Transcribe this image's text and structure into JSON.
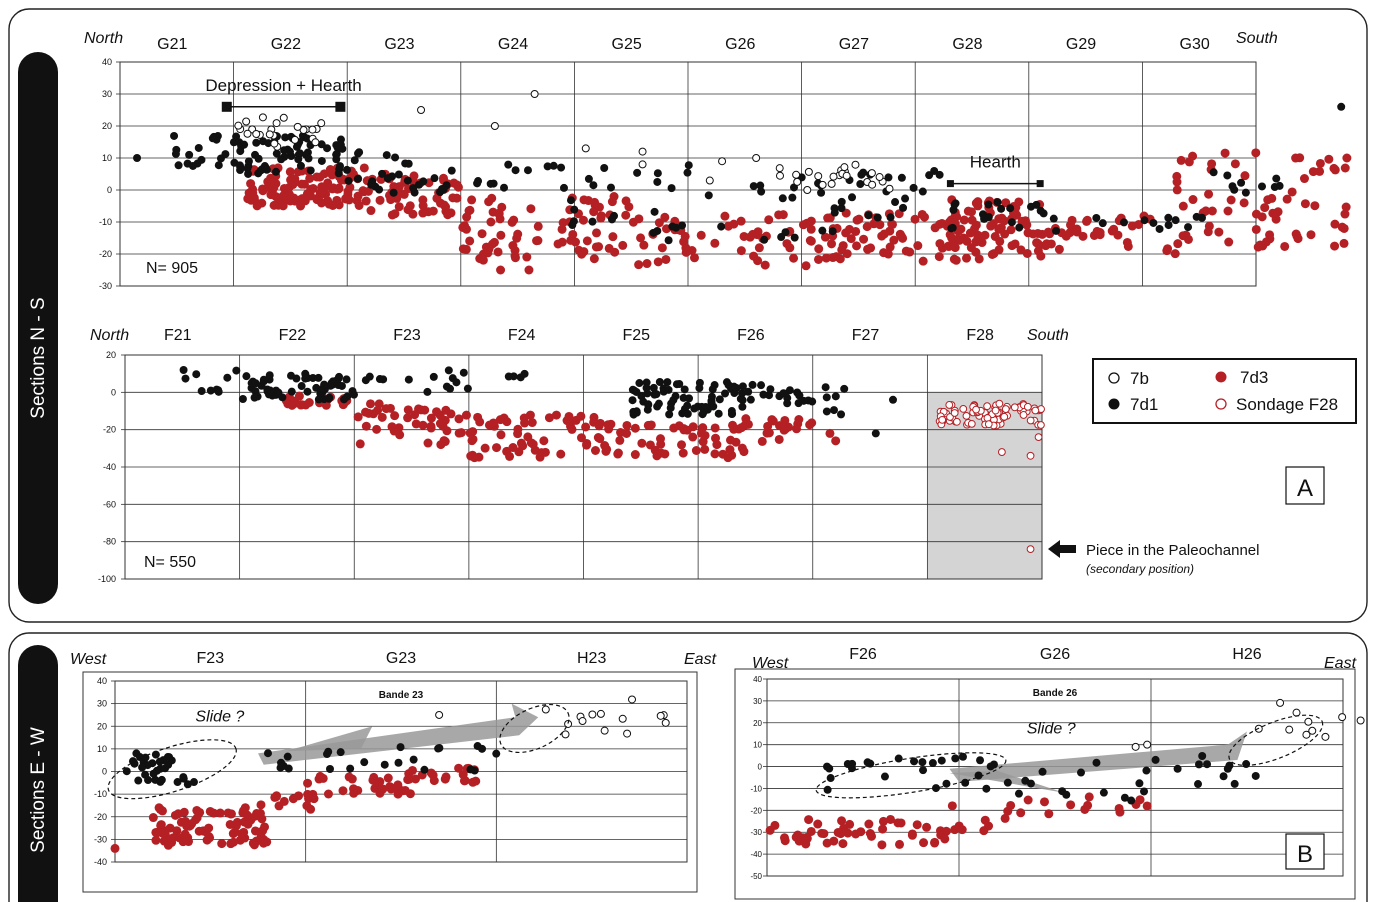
{
  "side_labels": {
    "ns": "Sections N - S",
    "ew": "Sections E - W"
  },
  "panel_labels": {
    "a": "A",
    "b": "B"
  },
  "legend": {
    "items": [
      {
        "label": "7b",
        "style": "open-black"
      },
      {
        "label": "7d1",
        "style": "filled-black"
      },
      {
        "label": "7d3",
        "style": "filled-red"
      },
      {
        "label": "Sondage F28",
        "style": "open-red"
      }
    ],
    "colors": {
      "black": "#111111",
      "red": "#b52025",
      "grey": "#999999"
    }
  },
  "annotations": {
    "paleochannel": "Piece in the Paleochannel",
    "paleochannel_sub": "(secondary position)"
  },
  "chart_data": [
    {
      "id": "g",
      "type": "scatter",
      "dir_left": "North",
      "dir_right": "South",
      "categories": [
        "G21",
        "G22",
        "G23",
        "G24",
        "G25",
        "G26",
        "G27",
        "G28",
        "G29",
        "G30"
      ],
      "ylim": [
        -30,
        40
      ],
      "yticks": [
        -30,
        -20,
        -10,
        0,
        10,
        20,
        30,
        40
      ],
      "n_label": "N= 905",
      "brackets": [
        {
          "label": "Depression + Hearth",
          "x0": 0.94,
          "x1": 1.94,
          "y": 26
        },
        {
          "label": "Hearth",
          "x0": 7.31,
          "x1": 8.1,
          "y": 2
        }
      ],
      "clusters": {
        "b": [
          [
            1.0,
            1.8,
            13,
            23,
            24
          ],
          [
            4.9,
            6.7,
            -1,
            7,
            5
          ],
          [
            5.8,
            6.8,
            0,
            8,
            18
          ]
        ],
        "d1": [
          [
            0.45,
            1.1,
            7,
            17,
            22
          ],
          [
            1.0,
            1.95,
            5,
            17,
            60
          ],
          [
            1.9,
            2.6,
            -2,
            13,
            28
          ],
          [
            2.6,
            3.6,
            -2,
            10,
            16
          ],
          [
            3.6,
            6.4,
            -16,
            8,
            50
          ],
          [
            6.4,
            7.3,
            -9,
            6,
            20
          ],
          [
            7.3,
            8.2,
            -12,
            -3,
            18
          ],
          [
            8.2,
            9.6,
            -13,
            -8,
            14
          ],
          [
            9.6,
            10.3,
            -1,
            6,
            10
          ]
        ],
        "d3": [
          [
            1.1,
            2.2,
            -5,
            7,
            110
          ],
          [
            2.1,
            3.0,
            -8,
            5,
            55
          ],
          [
            3.0,
            4.5,
            -22,
            -2,
            80
          ],
          [
            4.5,
            6.2,
            -24,
            -7,
            60
          ],
          [
            6.2,
            7.4,
            -23,
            -7,
            70
          ],
          [
            7.3,
            8.2,
            -22,
            -3,
            85
          ],
          [
            8.2,
            9.3,
            -20,
            -8,
            30
          ],
          [
            9.3,
            10.8,
            -18,
            12,
            70
          ]
        ]
      },
      "points": {
        "b": [
          [
            2.65,
            25
          ],
          [
            3.3,
            20
          ],
          [
            3.65,
            30
          ],
          [
            4.1,
            13
          ],
          [
            4.6,
            12
          ],
          [
            4.6,
            8
          ],
          [
            5.3,
            9
          ],
          [
            5.6,
            10
          ],
          [
            6.05,
            0
          ]
        ],
        "d1": [
          [
            10.75,
            26
          ],
          [
            0.15,
            10
          ]
        ],
        "d3": [
          [
            10.8,
            10
          ],
          [
            3.2,
            -20
          ],
          [
            3.35,
            -25
          ],
          [
            3.6,
            -25
          ]
        ]
      }
    },
    {
      "id": "f",
      "type": "scatter",
      "dir_left": "North",
      "dir_right": "South",
      "categories": [
        "F21",
        "F22",
        "F23",
        "F24",
        "F25",
        "F26",
        "F27",
        "F28"
      ],
      "ylim": [
        -100,
        20
      ],
      "yticks": [
        -100,
        -80,
        -60,
        -40,
        -20,
        0,
        20
      ],
      "n_label": "N= 550",
      "shaded_range": [
        7,
        8
      ],
      "clusters": {
        "d1": [
          [
            0.5,
            1.0,
            0,
            12,
            10
          ],
          [
            1.0,
            2.0,
            -4,
            10,
            60
          ],
          [
            2.0,
            3.0,
            0,
            13,
            14
          ],
          [
            3.3,
            3.5,
            8,
            10,
            4
          ],
          [
            4.35,
            5.4,
            -12,
            6,
            70
          ],
          [
            5.3,
            6.0,
            -6,
            4,
            25
          ],
          [
            6.1,
            6.4,
            -14,
            6,
            7
          ]
        ],
        "d3": [
          [
            1.4,
            2.0,
            -7,
            -2,
            24
          ],
          [
            2.0,
            3.0,
            -28,
            -6,
            45
          ],
          [
            3.0,
            4.1,
            -35,
            -12,
            55
          ],
          [
            4.1,
            5.4,
            -35,
            -16,
            60
          ],
          [
            5.4,
            6.2,
            -28,
            -14,
            20
          ]
        ],
        "sondage": [
          [
            7.1,
            8.0,
            -18,
            -6,
            85
          ]
        ]
      },
      "points": {
        "d1": [
          [
            6.55,
            -22
          ],
          [
            6.7,
            -4
          ]
        ],
        "d3": [
          [
            6.2,
            -26
          ],
          [
            6.15,
            -22
          ]
        ],
        "sondage": [
          [
            7.65,
            -32
          ],
          [
            7.9,
            -34
          ],
          [
            7.97,
            -24
          ],
          [
            7.9,
            -84
          ]
        ]
      }
    },
    {
      "id": "e23",
      "type": "scatter",
      "title": "Bande 23",
      "dir_left": "West",
      "dir_right": "East",
      "categories": [
        "F23",
        "G23",
        "H23"
      ],
      "ylim": [
        -40,
        40
      ],
      "yticks": [
        -40,
        -30,
        -20,
        -10,
        0,
        10,
        20,
        30,
        40
      ],
      "annotations": [
        {
          "label": "Slide ?",
          "x": 0.55,
          "y": 22
        }
      ],
      "clusters": {
        "d1": [
          [
            0.05,
            0.42,
            -6,
            8,
            32
          ],
          [
            0.8,
            1.35,
            1,
            10,
            12
          ],
          [
            1.4,
            2.0,
            0,
            12,
            12
          ]
        ],
        "d3": [
          [
            0.2,
            0.8,
            -33,
            -16,
            90
          ],
          [
            0.75,
            1.05,
            -18,
            -10,
            14
          ],
          [
            1.0,
            1.55,
            -10,
            -2,
            30
          ],
          [
            1.5,
            1.9,
            -5,
            3,
            18
          ]
        ],
        "b": [
          [
            2.2,
            2.9,
            16,
            34,
            14
          ]
        ]
      },
      "points": {
        "b": [
          [
            1.7,
            25
          ]
        ],
        "d3": [
          [
            0.0,
            -34
          ]
        ]
      }
    },
    {
      "id": "e26",
      "type": "scatter",
      "title": "Bande 26",
      "dir_left": "West",
      "dir_right": "East",
      "categories": [
        "F26",
        "G26",
        "H26"
      ],
      "ylim": [
        -50,
        40
      ],
      "yticks": [
        -50,
        -40,
        -30,
        -20,
        -10,
        0,
        10,
        20,
        30,
        40
      ],
      "annotations": [
        {
          "label": "Slide ?",
          "x": 1.48,
          "y": 15
        }
      ],
      "clusters": {
        "d1": [
          [
            0.3,
            1.2,
            -12,
            5,
            26
          ],
          [
            1.2,
            2.0,
            -16,
            2,
            15
          ],
          [
            2.0,
            2.6,
            -9,
            7,
            10
          ]
        ],
        "d3": [
          [
            0.0,
            0.95,
            -36,
            -24,
            50
          ],
          [
            0.95,
            1.25,
            -30,
            -16,
            8
          ],
          [
            1.25,
            1.95,
            -22,
            -10,
            14
          ]
        ],
        "b": [
          [
            2.55,
            3.15,
            8,
            30,
            10
          ]
        ]
      },
      "points": {
        "b": [
          [
            1.92,
            9
          ],
          [
            1.98,
            10
          ]
        ],
        "d1": [
          [
            2.25,
            1
          ],
          [
            2.4,
            -1
          ]
        ],
        "d3": [
          [
            1.98,
            -18
          ]
        ]
      }
    }
  ]
}
